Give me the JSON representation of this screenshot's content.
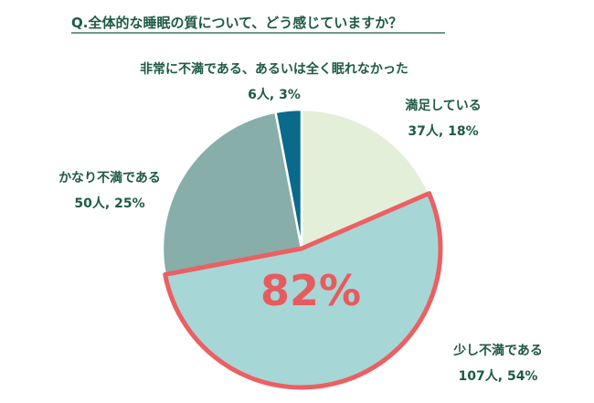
{
  "chart_data": {
    "type": "pie",
    "title": "Q.全体的な睡眠の質について、どう感じていますか？",
    "unit": "人",
    "slices": [
      {
        "label": "満足している",
        "count": 37,
        "percent": 18,
        "count_label": "37人, 18%",
        "color": "#e3efd9",
        "highlighted": false
      },
      {
        "label": "少し不満である",
        "count": 107,
        "percent": 54,
        "count_label": "107人, 54%",
        "color": "#a7d6d6",
        "highlighted": true
      },
      {
        "label": "かなり不満である",
        "count": 50,
        "percent": 25,
        "count_label": "50人, 25%",
        "color": "#87aea8",
        "highlighted": false
      },
      {
        "label": "非常に不満である、あるいは全く眠れなかった",
        "count": 6,
        "percent": 3,
        "count_label": "6人, 3%",
        "color": "#0b6a8c",
        "highlighted": false
      }
    ],
    "highlight_total": "82%",
    "highlight_color": "#ec5f62",
    "start": "12 o'clock",
    "direction": "clockwise"
  }
}
